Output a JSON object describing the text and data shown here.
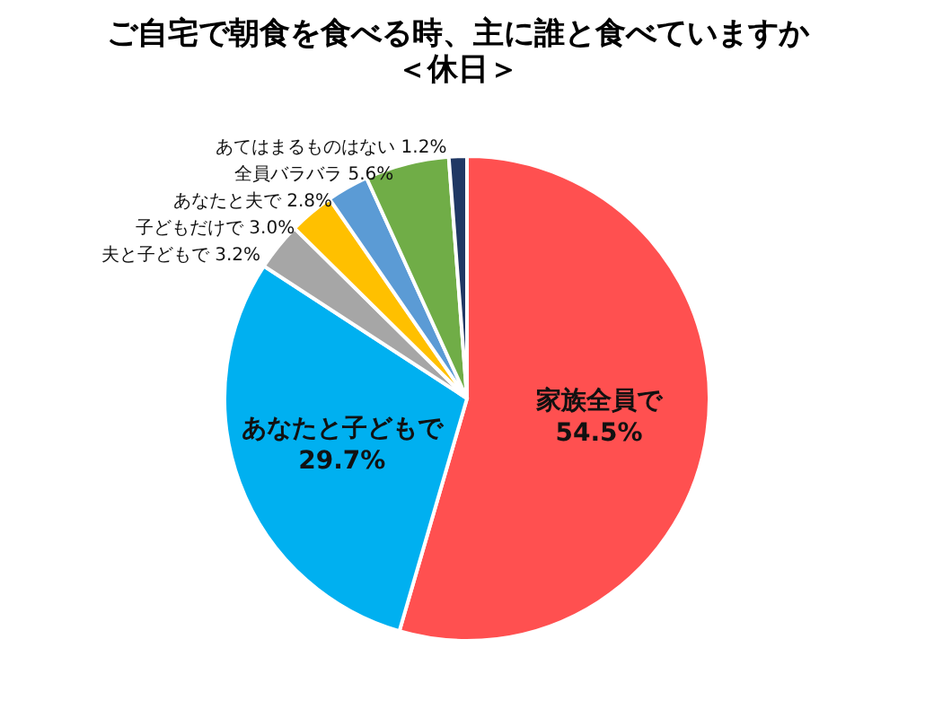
{
  "chart_data": {
    "type": "pie",
    "title": "ご自宅で朝食を食べる時、主に誰と食べていますか",
    "subtitle": "＜休日＞",
    "categories": [
      "家族全員で",
      "あなたと子どもで",
      "夫と子どもで",
      "子どもだけで",
      "あなたと夫で",
      "全員バラバラ",
      "あてはまるものはない"
    ],
    "values": [
      54.5,
      29.7,
      3.2,
      3.0,
      2.8,
      5.6,
      1.2
    ],
    "colors": [
      "#ff5050",
      "#00b0f0",
      "#a6a6a6",
      "#ffc000",
      "#5b9bd5",
      "#70ad47",
      "#203864"
    ],
    "value_labels": [
      "54.5%",
      "29.7%",
      "3.2%",
      "3.0%",
      "2.8%",
      "5.6%",
      "1.2%"
    ]
  }
}
